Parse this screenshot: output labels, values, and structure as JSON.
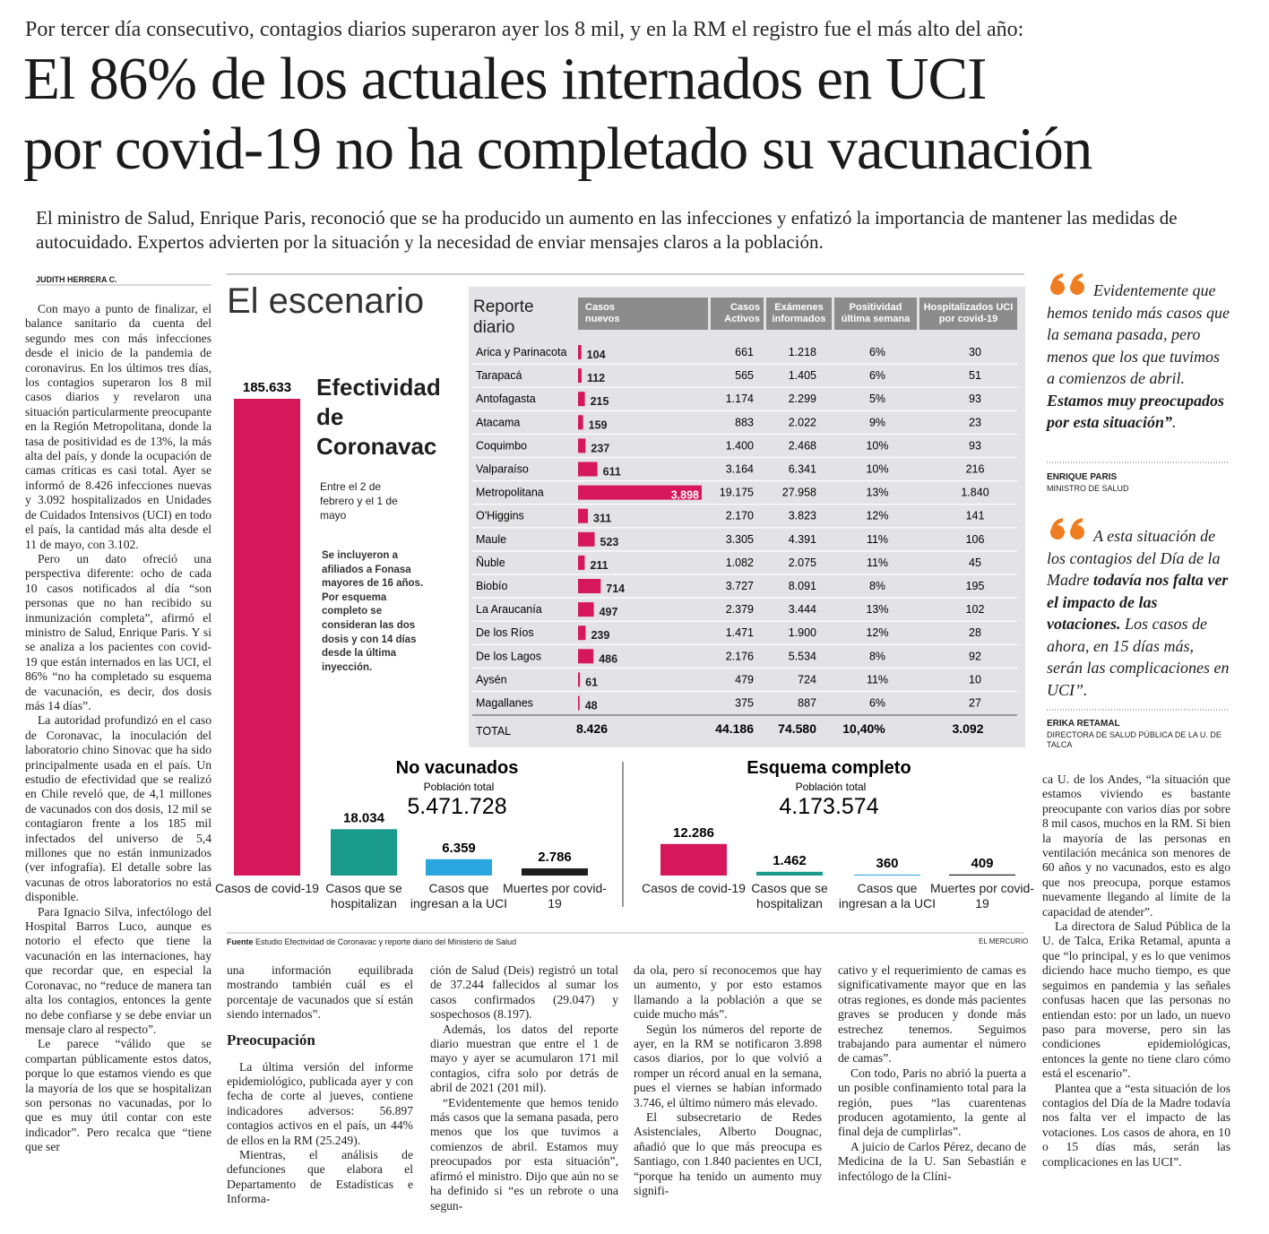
{
  "header": {
    "kicker": "Por tercer día consecutivo, contagios diarios superaron ayer los 8 mil, y en la RM el registro fue el más alto del año:",
    "title": [
      "El 86% de los actuales internados en UCI",
      "por covid-19 no ha completado su vacunación"
    ],
    "deck": "El ministro de Salud, Enrique Paris, reconoció que se ha producido un aumento en las infecciones y enfatizó la importancia de mantener las medidas de autocuidado. Expertos advierten por la situación y la necesidad de enviar mensajes claros a la población."
  },
  "byline": "JUDITH HERRERA C.",
  "columns": [
    [
      {
        "p": "Con mayo a punto de finalizar, el balance sanitario da cuenta del segundo mes con más infecciones desde el inicio de la pandemia de coronavirus. En los últimos tres días, los contagios superaron los 8 mil casos diarios y revelaron una situación particularmente preocupante en la Región Metropolitana, donde la tasa de positividad es de 13%, la más alta del país, y donde la ocupación de camas críticas es casi total. Ayer se informó de 8.426 infecciones nuevas y 3.092 hospitalizados en Unidades de Cuidados Intensivos (UCI) en todo el país, la cantidad más alta desde el 11 de mayo, con 3.102."
      },
      {
        "p": "Pero un dato ofreció una perspectiva diferente: ocho de cada 10 casos notificados al día “son personas que no han recibido su inmunización completa”, afirmó el ministro de Salud, Enrique Paris. Y si se analiza a los pacientes con covid-19 que están internados en las UCI, el 86% “no ha completado su esquema de vacunación, es decir, dos dosis más 14 días”."
      },
      {
        "p": "La autoridad profundizó en el caso de Coronavac, la inoculación del laboratorio chino Sinovac que ha sido principalmente usada en el país. Un estudio de efectividad que se realizó en Chile reveló que, de 4,1 millones de vacunados con dos dosis, 12 mil se contagiaron frente a los 185 mil infectados del universo de 5,4 millones que no están inmunizados (ver infografía). El detalle sobre las vacunas de otros laboratorios no está disponible."
      },
      {
        "p": "Para Ignacio Silva, infectólogo del Hospital Barros Luco, aunque es notorio el efecto que tiene la vacunación en las internaciones, hay que recordar que, en especial la Coronavac, no “reduce de manera tan alta los contagios, entonces la gente no debe confiarse y se debe enviar un mensaje claro al respecto”."
      },
      {
        "p": "Le parece “válido que se compartan públicamente estos datos, porque lo que estamos viendo es que la mayoría de los que se hospitalizan son personas no vacunadas, por lo que es muy útil contar con este indicador”. Pero recalca que “tiene que ser"
      }
    ],
    [
      {
        "p": "una información equilibrada mostrando también cuál es el porcentaje de vacunados que sí están siendo internados”."
      },
      {
        "h": "Preocupación"
      },
      {
        "p": "La última versión del informe epidemiológico, publicada ayer y con fecha de corte al jueves, contiene indicadores adversos: 56.897 contagios activos en el país, un 44% de ellos en la RM (25.249)."
      },
      {
        "p": "Mientras, el análisis de defunciones que elabora el Departamento de Estadísticas e Informa-"
      }
    ],
    [
      {
        "p": "ción de Salud (Deis) registró un total de 37.244 fallecidos al sumar los casos confirmados (29.047) y sospechosos (8.197)."
      },
      {
        "p": "Además, los datos del reporte diario muestran que entre el 1 de mayo y ayer se acumularon 171 mil contagios, cifra solo por detrás de abril de 2021 (201 mil)."
      },
      {
        "p": "“Evidentemente que hemos tenido más casos que la semana pasada, pero menos que los que tuvimos a comienzos de abril. Estamos muy preocupados por esta situación”, afirmó el ministro. Dijo que aún no se ha definido si “es un rebrote o una segun-"
      }
    ],
    [
      {
        "p": "da ola, pero sí reconocemos que hay un aumento, y por esto estamos llamando a la población a que se cuide mucho más”."
      },
      {
        "p": "Según los números del reporte de ayer, en la RM se notificaron 3.898 casos diarios, por lo que volvió a romper un récord anual en la semana, pues el viernes se habían informado 3.746, el último número más elevado."
      },
      {
        "p": "El subsecretario de Redes Asistenciales, Alberto Dougnac, añadió que lo que más preocupa es Santiago, con 1.840 pacientes en UCI, “porque ha tenido un aumento muy signifi-"
      }
    ],
    [
      {
        "p": "cativo y el requerimiento de camas es significativamente mayor que en las otras regiones, es donde más pacientes graves se producen y donde más estrechez tenemos. Seguimos trabajando para aumentar el número de camas”."
      },
      {
        "p": "Con todo, Paris no abrió la puerta a un posible confinamiento total para la región, pues “las cuarentenas producen agotamiento, la gente al final deja de cumplirlas”."
      },
      {
        "p": "A juicio de Carlos Pérez, decano de Medicina de la U. San Sebastián e infectólogo de la Clíni-"
      }
    ],
    [
      {
        "p": "ca U. de los Andes, “la situación que estamos viviendo es bastante preocupante con varios días por sobre 8 mil casos, muchos en la RM. Si bien la mayoría de las personas en ventilación mecánica son menores de 60 años y no vacunados, esto es algo que nos preocupa, porque estamos nuevamente llegando al límite de la capacidad de atender”."
      },
      {
        "p": "La directora de Salud Pública de la U. de Talca, Erika Retamal, apunta a que “lo principal, y es lo que venimos diciendo hace mucho tiempo, es que seguimos en pandemia y las señales confusas hacen que las personas no entiendan esto: por un lado, un nuevo paso para moverse, pero sin las condiciones epidemiológicas, entonces la gente no tiene claro cómo está el escenario”."
      },
      {
        "p": "Plantea que a “esta situación de los contagios del Día de la Madre todavía nos falta ver el impacto de las votaciones. Los casos de ahora, en 10 o 15 días más, serán las complicaciones en las UCI”."
      }
    ]
  ],
  "quotes": [
    {
      "text": [
        "Evidentemente que hemos tenido más casos que la semana pasada, pero menos que los que tuvimos a comienzos de abril. ",
        "Estamos muy preocupados por esta situación”",
        "."
      ],
      "author": "ENRIQUE PARIS",
      "role": "MINISTRO DE SALUD"
    },
    {
      "text": [
        "A esta situación de los contagios del Día de la Madre ",
        "todavía nos falta ver el impacto de las votaciones.",
        " Los casos de ahora, en 15 días más, serán las complicaciones en UCI”."
      ],
      "author": "ERIKA RETAMAL",
      "role": "DIRECTORA DE SALUD PÚBLICA DE LA U. DE TALCA"
    }
  ],
  "infographic": {
    "title": "El escenario",
    "effectiveness": {
      "title": "Efectividad de Coronavac",
      "period": "Entre el 2 de febrero y el 1 de mayo",
      "note": "Se incluyeron a afiliados a Fonasa mayores de 16 años. Por esquema completo se consideran las dos dosis y con 14 días desde la última inyección.",
      "categories": [
        "Casos de covid-19",
        "Casos que se hospitalizan",
        "Casos que ingresan a la UCI",
        "Muertes por covid-19"
      ],
      "colors": [
        "#d6185a",
        "#1a9a8a",
        "#2aa7df",
        "#1d1d1d"
      ],
      "groups": [
        {
          "name": "No vacunados",
          "population_label": "Población total",
          "population": "5.471.728",
          "values": [
            185633,
            18034,
            6359,
            2786
          ],
          "value_labels": [
            "185.633",
            "18.034",
            "6.359",
            "2.786"
          ]
        },
        {
          "name": "Esquema completo",
          "population_label": "Población total",
          "population": "4.173.574",
          "values": [
            12286,
            1462,
            360,
            409
          ],
          "value_labels": [
            "12.286",
            "1.462",
            "360",
            "409"
          ]
        }
      ]
    },
    "report": {
      "title": "Reporte diario",
      "headers": [
        "Casos nuevos",
        "Casos Activos",
        "Exámenes informados",
        "Positividad última semana",
        "Hospitalizados UCI por covid-19"
      ],
      "bar_color": "#d6185a",
      "regions": [
        "Arica y Parinacota",
        "Tarapacá",
        "Antofagasta",
        "Atacama",
        "Coquimbo",
        "Valparaíso",
        "Metropolitana",
        "O'Higgins",
        "Maule",
        "Ñuble",
        "Biobío",
        "La Araucanía",
        "De los Ríos",
        "De los Lagos",
        "Aysén",
        "Magallanes"
      ],
      "new_cases": {
        "values": [
          104,
          112,
          215,
          159,
          237,
          611,
          3898,
          311,
          523,
          211,
          714,
          497,
          239,
          486,
          61,
          48
        ],
        "value_labels": [
          "104",
          "112",
          "215",
          "159",
          "237",
          "611",
          "3.898",
          "311",
          "523",
          "211",
          "714",
          "497",
          "239",
          "486",
          "61",
          "48"
        ]
      },
      "rows": [
        [
          "661",
          "1.218",
          "6%",
          "30"
        ],
        [
          "565",
          "1.405",
          "6%",
          "51"
        ],
        [
          "1.174",
          "2.299",
          "5%",
          "93"
        ],
        [
          "883",
          "2.022",
          "9%",
          "23"
        ],
        [
          "1.400",
          "2.468",
          "10%",
          "93"
        ],
        [
          "3.164",
          "6.341",
          "10%",
          "216"
        ],
        [
          "19.175",
          "27.958",
          "13%",
          "1.840"
        ],
        [
          "2.170",
          "3.823",
          "12%",
          "141"
        ],
        [
          "3.305",
          "4.391",
          "11%",
          "106"
        ],
        [
          "1.082",
          "2.075",
          "11%",
          "45"
        ],
        [
          "3.727",
          "8.091",
          "8%",
          "195"
        ],
        [
          "2.379",
          "3.444",
          "13%",
          "102"
        ],
        [
          "1.471",
          "1.900",
          "12%",
          "28"
        ],
        [
          "2.176",
          "5.534",
          "8%",
          "92"
        ],
        [
          "479",
          "724",
          "11%",
          "10"
        ],
        [
          "375",
          "887",
          "6%",
          "27"
        ]
      ],
      "total": {
        "label": "TOTAL",
        "cells": [
          "8.426",
          "44.186",
          "74.580",
          "10,40%",
          "3.092"
        ]
      }
    },
    "source": {
      "label": "Fuente",
      "text": "Estudio Efectividad de Coronavac y reporte diario del Ministerio de Salud",
      "credit": "EL MERCURIO"
    }
  }
}
